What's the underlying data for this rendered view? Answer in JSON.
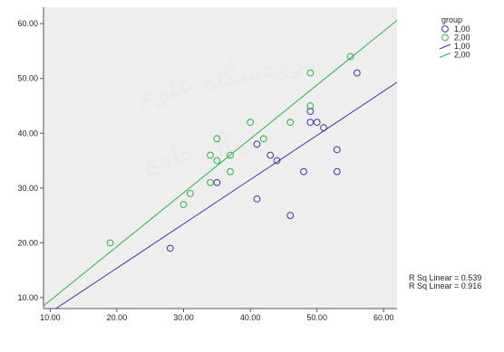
{
  "chart_data": {
    "type": "scatter",
    "title": "",
    "xlabel": "",
    "ylabel": "",
    "xlim": [
      9,
      62
    ],
    "ylim": [
      8,
      63
    ],
    "x_ticks": [
      "10.00",
      "20.00",
      "30.00",
      "40.00",
      "50.00",
      "60.00"
    ],
    "y_ticks": [
      "10.00",
      "20.00",
      "30.00",
      "40.00",
      "50.00",
      "60.00"
    ],
    "grid": false,
    "legend_position": "right",
    "legend_title": "group",
    "legend_entries": [
      {
        "label": "1,00",
        "kind": "marker",
        "color": "#3a3a9e"
      },
      {
        "label": "2,00",
        "kind": "marker",
        "color": "#2db34a"
      },
      {
        "label": "1,00",
        "kind": "line",
        "color": "#3a3a9e"
      },
      {
        "label": "2,00",
        "kind": "line",
        "color": "#2db34a"
      }
    ],
    "series": [
      {
        "name": "1,00",
        "color": "#3a3a9e",
        "points": [
          [
            28,
            19
          ],
          [
            35,
            31
          ],
          [
            41,
            28
          ],
          [
            41,
            38
          ],
          [
            43,
            36
          ],
          [
            44,
            35
          ],
          [
            46,
            25
          ],
          [
            48,
            33
          ],
          [
            49,
            42
          ],
          [
            49,
            44
          ],
          [
            50,
            42
          ],
          [
            51,
            41
          ],
          [
            53,
            37
          ],
          [
            53,
            33
          ],
          [
            56,
            51
          ]
        ],
        "fit": {
          "x": [
            9,
            62
          ],
          "y": [
            6.5,
            49.3
          ]
        },
        "r_sq_label": "R Sq Linear = 0.539"
      },
      {
        "name": "2,00",
        "color": "#2db34a",
        "points": [
          [
            19,
            20
          ],
          [
            30,
            27
          ],
          [
            31,
            29
          ],
          [
            34,
            31
          ],
          [
            34,
            36
          ],
          [
            35,
            35
          ],
          [
            35,
            39
          ],
          [
            37,
            33
          ],
          [
            37,
            36
          ],
          [
            40,
            42
          ],
          [
            42,
            39
          ],
          [
            46,
            42
          ],
          [
            49,
            51
          ],
          [
            49,
            45
          ],
          [
            55,
            54
          ]
        ],
        "fit": {
          "x": [
            9,
            62
          ],
          "y": [
            8.5,
            60.6
          ]
        },
        "r_sq_label": "R Sq Linear = 0.916"
      }
    ],
    "watermark_lines": [
      "پژوهشگاه علوم",
      "پرتال جامع"
    ]
  },
  "colors": {
    "plot_background": "#ebebeb",
    "page_background": "#ffffff",
    "axis": "#555555"
  }
}
